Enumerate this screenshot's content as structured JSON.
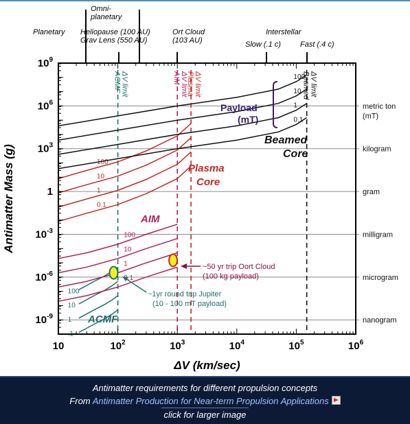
{
  "chart_data": {
    "type": "line",
    "xlabel": "ΔV (km/sec)",
    "ylabel": "Antimatter Mass (g)",
    "xscale": "log",
    "yscale": "log",
    "xlim": [
      10,
      1000000
    ],
    "ylim": [
      1e-10,
      1000000000.0
    ],
    "x_tick_labels": [
      {
        "v": 10,
        "base": "10",
        "exp": ""
      },
      {
        "v": 100,
        "base": "10",
        "exp": "2"
      },
      {
        "v": 1000,
        "base": "10",
        "exp": "3"
      },
      {
        "v": 10000,
        "base": "10",
        "exp": "4"
      },
      {
        "v": 100000,
        "base": "10",
        "exp": "5"
      },
      {
        "v": 1000000,
        "base": "10",
        "exp": "6"
      }
    ],
    "y_tick_labels": [
      {
        "v": 1000000000.0,
        "base": "10",
        "exp": "9"
      },
      {
        "v": 1000000.0,
        "base": "10",
        "exp": "6"
      },
      {
        "v": 1000.0,
        "base": "10",
        "exp": "3"
      },
      {
        "v": 1,
        "base": "1",
        "exp": ""
      },
      {
        "v": 0.001,
        "base": "10",
        "exp": "-3"
      },
      {
        "v": 1e-06,
        "base": "10",
        "exp": "-6"
      },
      {
        "v": 1e-09,
        "base": "10",
        "exp": "-9"
      }
    ],
    "mass_references": [
      {
        "label": "metric ton",
        "sublabel": "(mT)",
        "y": 1000000.0
      },
      {
        "label": "kilogram",
        "sublabel": "",
        "y": 1000.0
      },
      {
        "label": "gram",
        "sublabel": "",
        "y": 1
      },
      {
        "label": "milligram",
        "sublabel": "",
        "y": 0.001
      },
      {
        "label": "microgram",
        "sublabel": "",
        "y": 1e-06
      },
      {
        "label": "nanogram",
        "sublabel": "",
        "y": 1e-09
      }
    ],
    "mission_labels": [
      {
        "id": "planetary",
        "lines": [
          "Planetary"
        ]
      },
      {
        "id": "omni",
        "lines": [
          "Omni-",
          "planetary"
        ]
      },
      {
        "id": "helio",
        "lines": [
          "Heliopause (100 AU)",
          "Grav Lens (550 AU)"
        ]
      },
      {
        "id": "oort",
        "lines": [
          "Ort Cloud",
          "(103 AU)"
        ]
      },
      {
        "id": "inter",
        "lines": [
          "Interstellar"
        ]
      },
      {
        "id": "slow",
        "lines": [
          "Slow (.1 c)"
        ]
      },
      {
        "id": "fast",
        "lines": [
          "Fast (.4 c)"
        ]
      }
    ],
    "limits": [
      {
        "id": "acmf-limit",
        "label": "ACMF",
        "label2": "ΔV limit",
        "x": 100,
        "color": "#1f6f6a"
      },
      {
        "id": "aim-limit",
        "label": "AIM",
        "label2": "ΔV limit",
        "x": 1000,
        "color": "#b0205a"
      },
      {
        "id": "plasma-limit",
        "label": "Plasma",
        "label2": "ΔV limit",
        "x": 1700,
        "color": "#c62828"
      },
      {
        "id": "beamed-limit",
        "label": "Beamed",
        "label2": "ΔV limit",
        "x": 150000,
        "color": "#111111"
      }
    ],
    "groups": [
      {
        "name": "ACMF",
        "color": "#1f6f6a",
        "series": [
          {
            "name": "100",
            "x": [
              22,
              40,
              60,
              80,
              100
            ],
            "y": [
              1.3e-07,
              5e-07,
              1.2e-06,
              2.5e-06,
              5e-06
            ]
          },
          {
            "name": "10",
            "x": [
              22,
              40,
              60,
              80,
              100
            ],
            "y": [
              1.3e-08,
              5e-08,
              1.2e-07,
              2.5e-07,
              5e-07
            ]
          },
          {
            "name": "1",
            "x": [
              22,
              40,
              60,
              80,
              100
            ],
            "y": [
              1.3e-09,
              5e-09,
              1.2e-08,
              2.5e-08,
              5e-08
            ]
          },
          {
            "name": ".1",
            "x": [
              22,
              40,
              60,
              80,
              100
            ],
            "y": [
              1.3e-10,
              5e-10,
              1.2e-09,
              2.5e-09,
              5e-09
            ]
          }
        ]
      },
      {
        "name": "AIM",
        "color": "#b0205a",
        "series": [
          {
            "name": "100",
            "x": [
              10,
              30,
              100,
              300,
              1000
            ],
            "y": [
              2e-05,
              5e-05,
              0.0002,
              0.001,
              0.005
            ]
          },
          {
            "name": "10",
            "x": [
              10,
              30,
              100,
              300,
              1000
            ],
            "y": [
              2e-06,
              5e-06,
              2e-05,
              0.0001,
              0.0005
            ]
          },
          {
            "name": "1",
            "x": [
              10,
              30,
              100,
              300,
              1000
            ],
            "y": [
              2e-07,
              5e-07,
              2e-06,
              1e-05,
              5e-05
            ]
          },
          {
            "name": "0.1",
            "x": [
              10,
              30,
              100,
              300,
              1000
            ],
            "y": [
              2e-08,
              5e-08,
              2e-07,
              1e-06,
              5e-06
            ]
          }
        ]
      },
      {
        "name": "Plasma Core",
        "color": "#c62828",
        "series": [
          {
            "name": "100",
            "x": [
              10,
              30,
              100,
              300,
              1000,
              1700
            ],
            "y": [
              8,
              30,
              120,
              700,
              8000,
              60000
            ]
          },
          {
            "name": "10",
            "x": [
              10,
              30,
              100,
              300,
              1000,
              1700
            ],
            "y": [
              0.8,
              3,
              12,
              70,
              800,
              6000
            ]
          },
          {
            "name": "1",
            "x": [
              10,
              30,
              100,
              300,
              1000,
              1700
            ],
            "y": [
              0.08,
              0.3,
              1.2,
              7,
              80,
              600
            ]
          },
          {
            "name": "0.1",
            "x": [
              10,
              30,
              100,
              300,
              1000,
              1700
            ],
            "y": [
              0.008,
              0.03,
              0.12,
              0.7,
              8,
              60
            ]
          }
        ]
      },
      {
        "name": "Beamed Core",
        "color": "#111111",
        "series": [
          {
            "name": "100",
            "x": [
              10,
              100,
              1000,
              10000,
              50000,
              100000,
              150000
            ],
            "y": [
              40000,
              200000,
              1000000,
              4000000,
              15000000,
              50000000,
              150000000
            ]
          },
          {
            "name": "10",
            "x": [
              10,
              100,
              1000,
              10000,
              50000,
              100000,
              150000
            ],
            "y": [
              4000,
              20000,
              100000,
              400000,
              1500000,
              5000000,
              15000000
            ]
          },
          {
            "name": "1",
            "x": [
              10,
              100,
              1000,
              10000,
              50000,
              100000,
              150000
            ],
            "y": [
              400,
              2000,
              10000,
              40000,
              150000,
              500000,
              1500000
            ]
          },
          {
            "name": "0.1",
            "x": [
              10,
              100,
              1000,
              10000,
              50000,
              100000,
              150000
            ],
            "y": [
              40,
              200,
              1000,
              4000,
              15000,
              50000,
              150000
            ]
          }
        ]
      }
    ],
    "annotations": [
      {
        "id": "beamed-core-label",
        "lines": [
          "Beamed",
          "Core"
        ],
        "color": "#111111"
      },
      {
        "id": "payload-label",
        "lines": [
          "Payload",
          "(mT)"
        ],
        "color": "#3a1f6e"
      },
      {
        "id": "plasma-core-label",
        "lines": [
          "Plasma",
          "Core"
        ],
        "color": "#c62828"
      },
      {
        "id": "aim-label",
        "lines": [
          "AIM"
        ],
        "color": "#b0205a"
      },
      {
        "id": "acmf-label",
        "lines": [
          "ACMF"
        ],
        "color": "#1f6f6a"
      },
      {
        "id": "oort-note",
        "lines": [
          "~50 yr trip Oort Cloud",
          "(100 kg payload)"
        ],
        "color": "#8a1048"
      },
      {
        "id": "jupiter-note",
        "lines": [
          "~1yr round trip Jupiter",
          "(10 - 100 mT payload)"
        ],
        "color": "#1f6f6a"
      }
    ],
    "highlights": [
      {
        "id": "acmf-marker",
        "x": 85,
        "y": 2e-06
      },
      {
        "id": "aim-marker",
        "x": 850,
        "y": 1.5e-05
      }
    ]
  },
  "caption": {
    "line1": "Antimatter requirements for different propulsion concepts",
    "line2_prefix": "From ",
    "line2_link": "Antimatter Production for Near-term Propulsion Applications",
    "line3": "click for larger image"
  },
  "icons": {
    "link_icon": "external-link-arrow-icon"
  }
}
